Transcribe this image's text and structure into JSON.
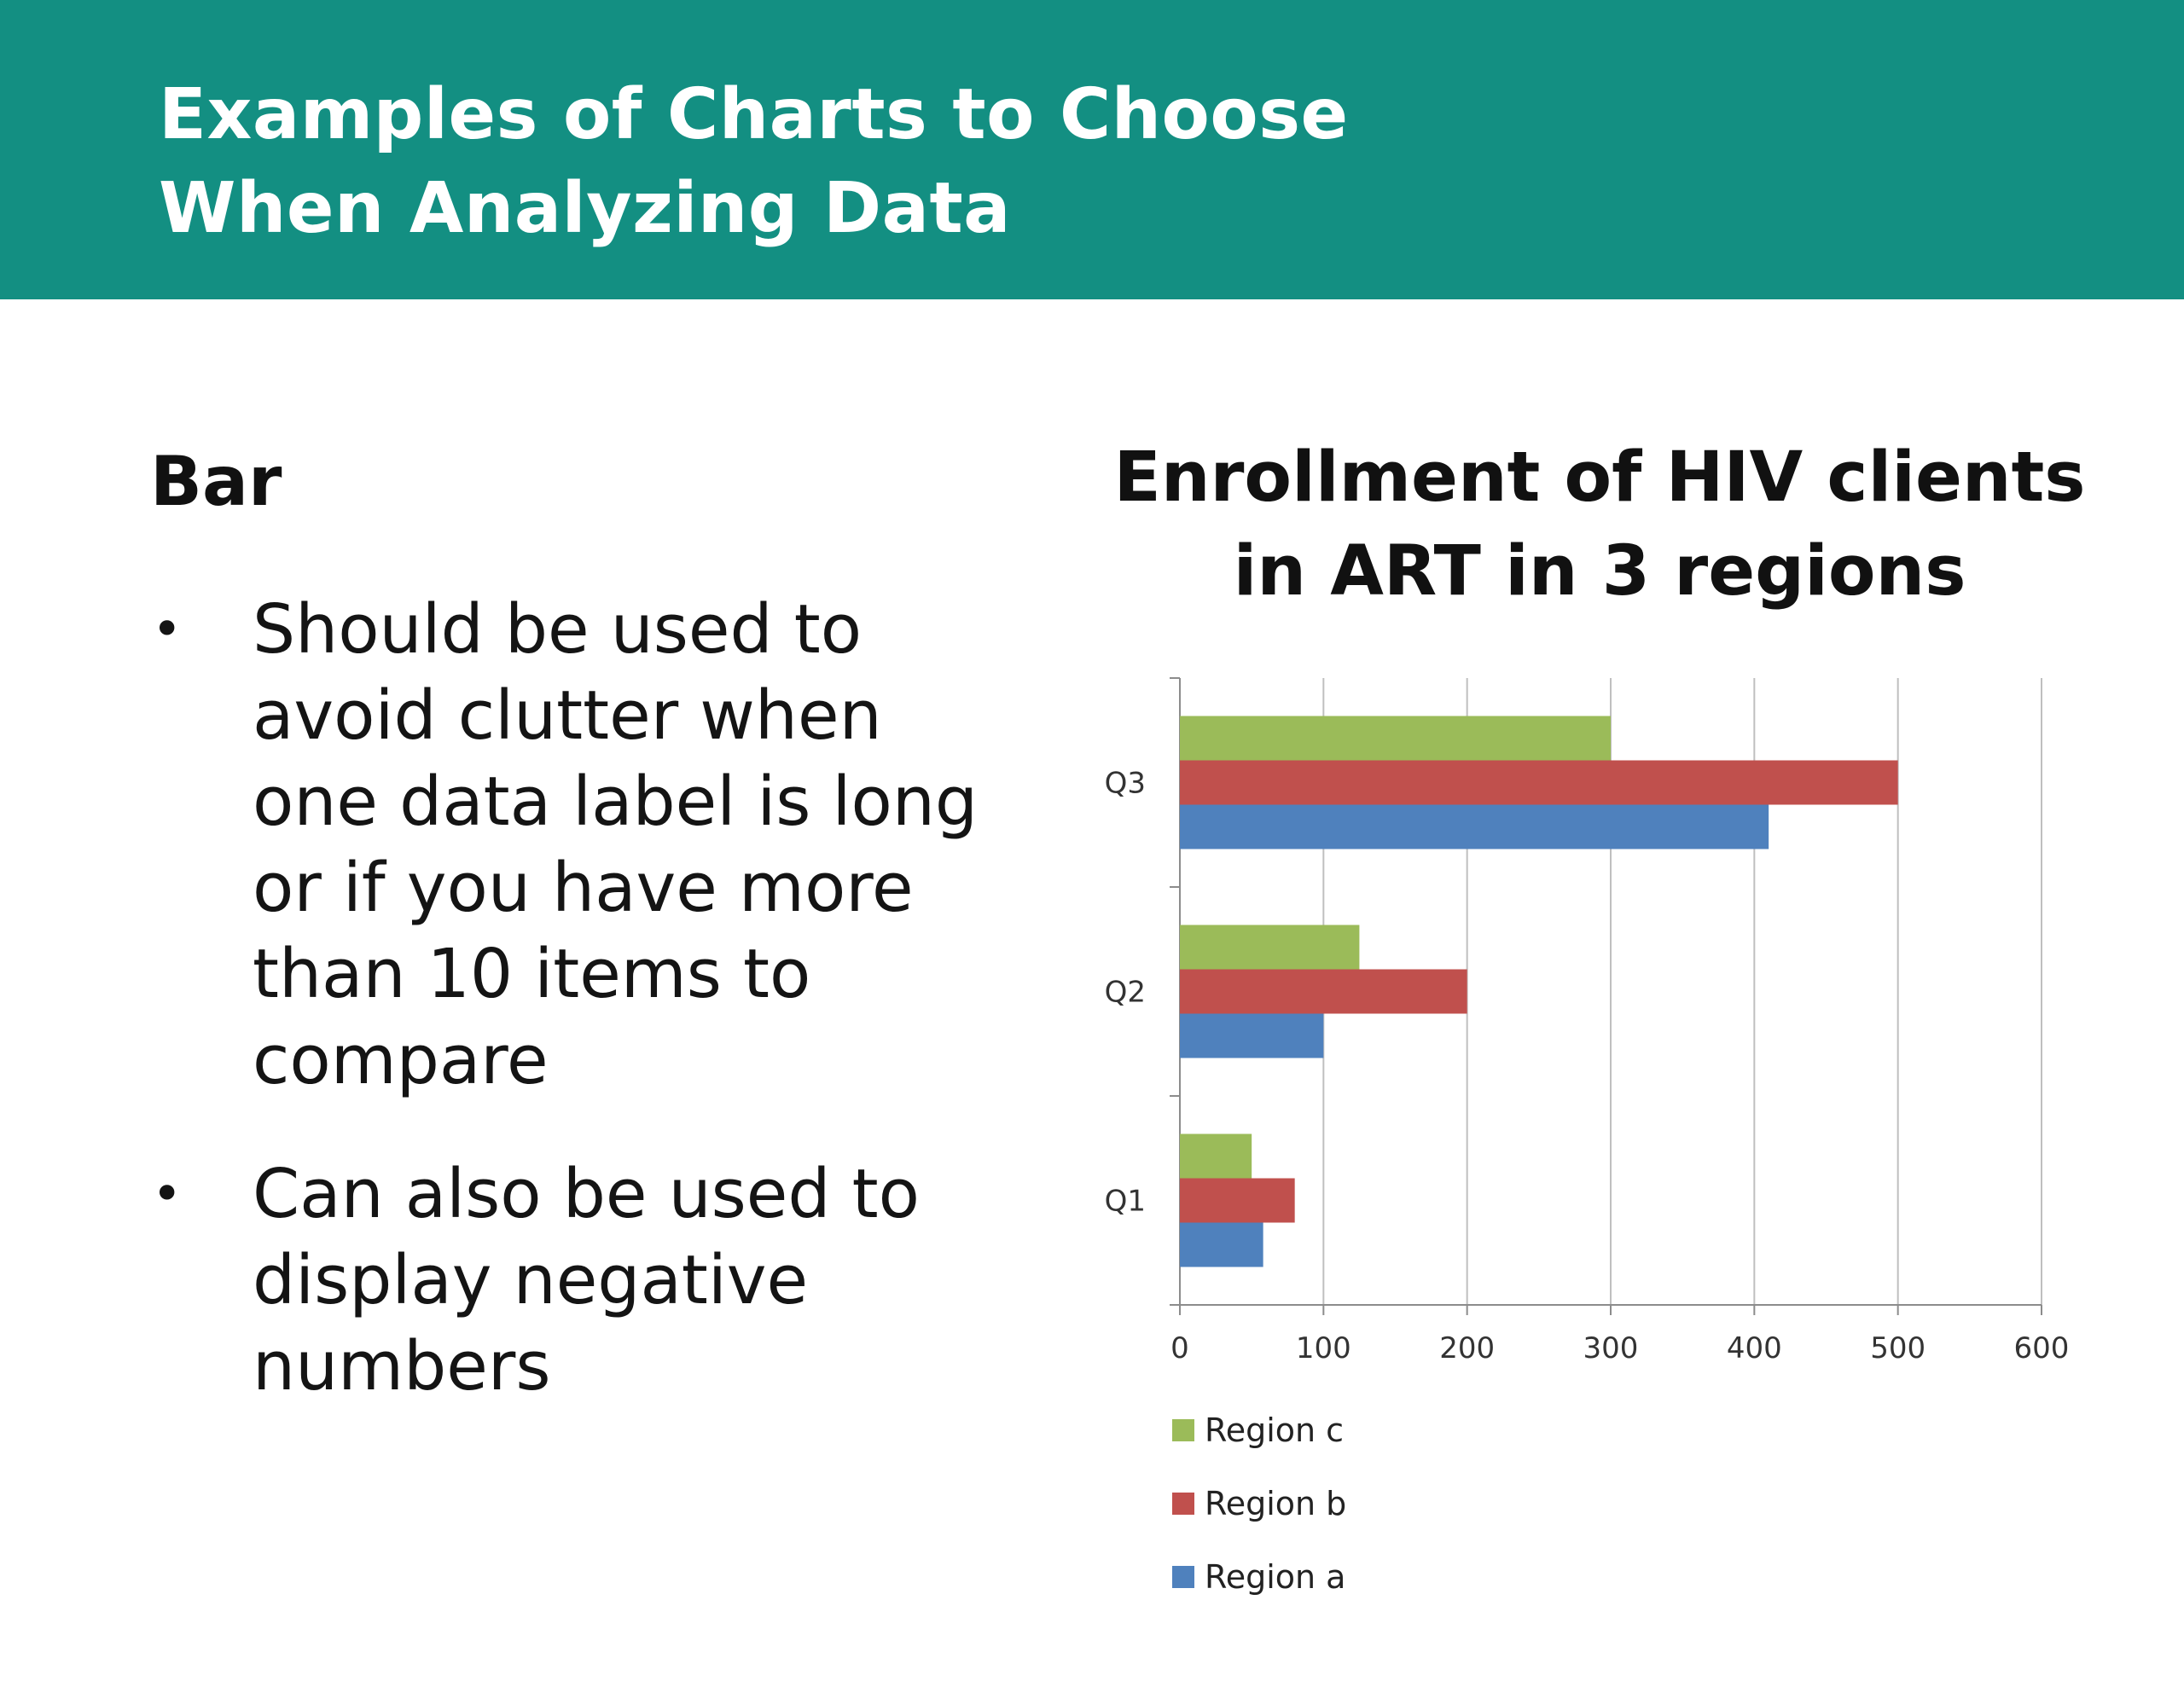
{
  "header": {
    "title_line1": "Examples of Charts to Choose",
    "title_line2": "When Analyzing Data",
    "background_color": "#138F82"
  },
  "left_panel": {
    "heading": "Bar",
    "bullets": [
      "Should be used to avoid clutter when one data label is long or if you have more than 10 items to compare",
      "Can also be used to display negative numbers"
    ],
    "bullet_symbol": "•"
  },
  "chart_data": {
    "type": "bar",
    "orientation": "horizontal",
    "title_line1": "Enrollment of HIV clients",
    "title_line2": "in ART in 3 regions",
    "categories": [
      "Q1",
      "Q2",
      "Q3"
    ],
    "series": [
      {
        "name": "Region a",
        "color": "#4F81BD",
        "values": [
          58,
          100,
          410
        ]
      },
      {
        "name": "Region b",
        "color": "#C0504D",
        "values": [
          80,
          200,
          500
        ]
      },
      {
        "name": "Region c",
        "color": "#9BBB59",
        "values": [
          50,
          125,
          300
        ]
      }
    ],
    "legend_order": [
      "Region c",
      "Region b",
      "Region a"
    ],
    "x_ticks": [
      0,
      100,
      200,
      300,
      400,
      500,
      600
    ],
    "xlim": [
      0,
      600
    ],
    "xlabel": "",
    "ylabel": "",
    "grid": "vertical",
    "legend_position": "bottom-left"
  }
}
